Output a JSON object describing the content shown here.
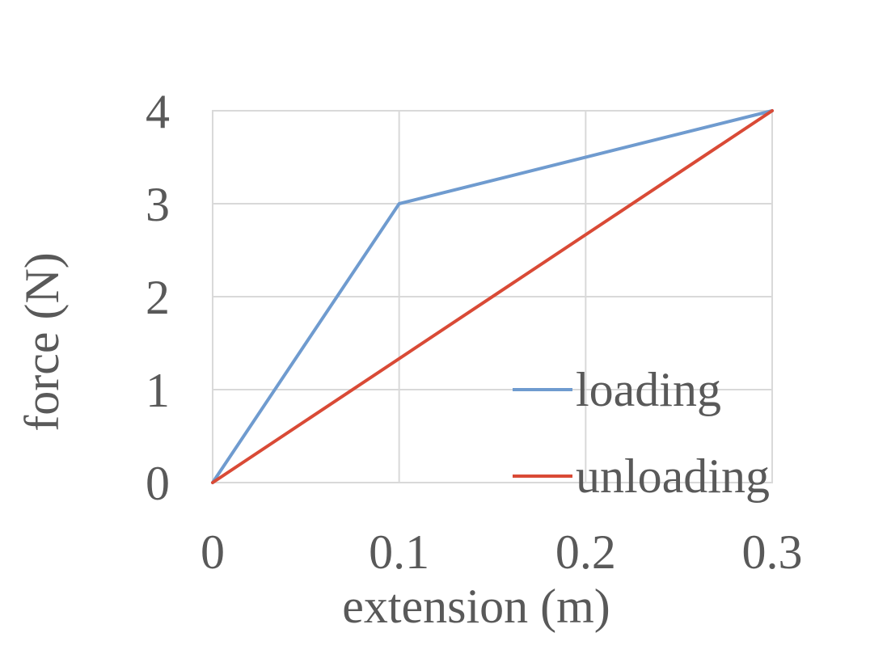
{
  "chart_data": {
    "type": "line",
    "title": "",
    "xlabel": "extension (m)",
    "ylabel": "force (N)",
    "xlim": [
      0,
      0.3
    ],
    "ylim": [
      0,
      4
    ],
    "xticks": [
      "0",
      "0.1",
      "0.2",
      "0.3"
    ],
    "yticks": [
      "0",
      "1",
      "2",
      "3",
      "4"
    ],
    "grid": true,
    "legend_position": "bottom-right",
    "series": [
      {
        "name": "loading",
        "color": "#6f9bcf",
        "x": [
          0,
          0.1,
          0.3
        ],
        "y": [
          0,
          3,
          4
        ]
      },
      {
        "name": "unloading",
        "color": "#d94a36",
        "x": [
          0,
          0.3
        ],
        "y": [
          0,
          4
        ]
      }
    ]
  }
}
